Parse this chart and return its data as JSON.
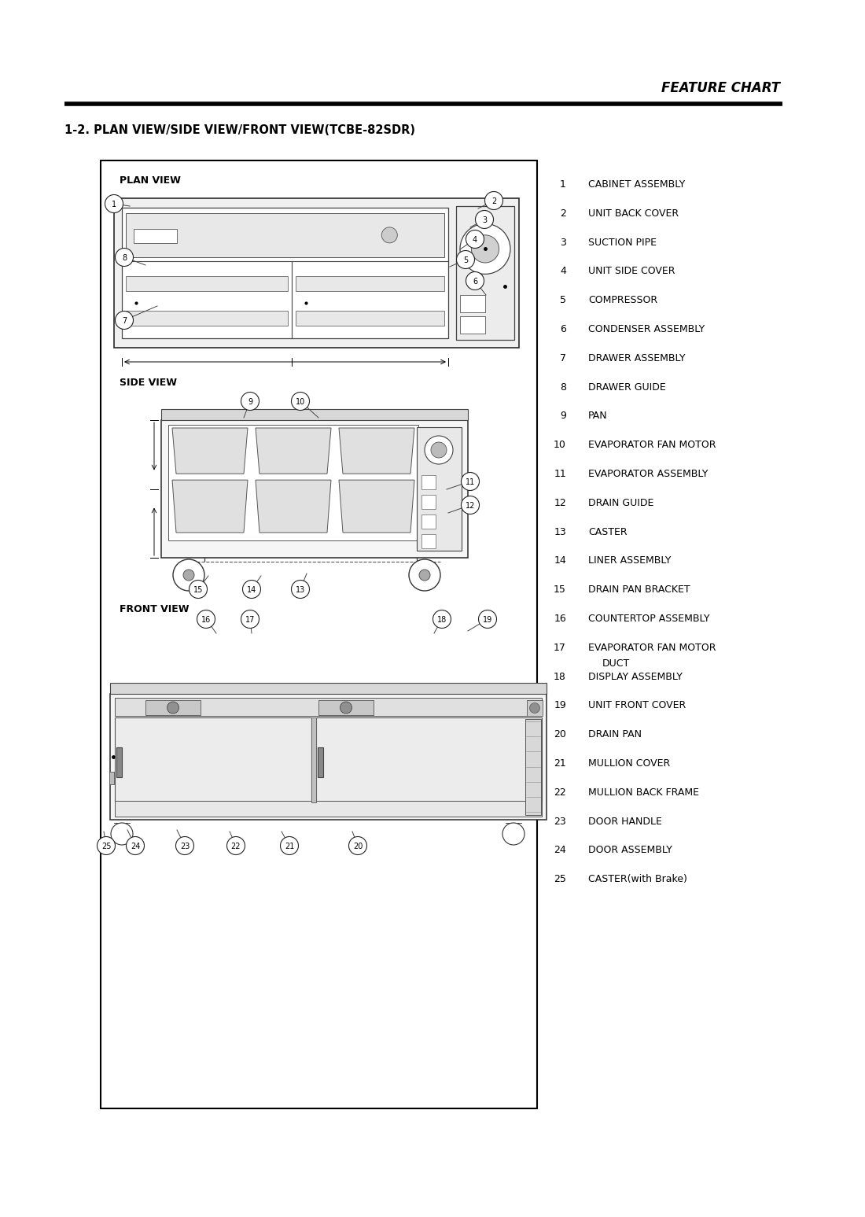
{
  "title_header": "FEATURE CHART",
  "section_title": "1-2. PLAN VIEW/SIDE VIEW/FRONT VIEW(TCBE-82SDR)",
  "bg_color": "#ffffff",
  "border_color": "#000000",
  "line_color": "#555555",
  "parts": [
    [
      1,
      "CABINET ASSEMBLY"
    ],
    [
      2,
      "UNIT BACK COVER"
    ],
    [
      3,
      "SUCTION PIPE"
    ],
    [
      4,
      "UNIT SIDE COVER"
    ],
    [
      5,
      "COMPRESSOR"
    ],
    [
      6,
      "CONDENSER ASSEMBLY"
    ],
    [
      7,
      "DRAWER ASSEMBLY"
    ],
    [
      8,
      "DRAWER GUIDE"
    ],
    [
      9,
      "PAN"
    ],
    [
      10,
      "EVAPORATOR FAN MOTOR"
    ],
    [
      11,
      "EVAPORATOR ASSEMBLY"
    ],
    [
      12,
      "DRAIN GUIDE"
    ],
    [
      13,
      "CASTER"
    ],
    [
      14,
      "LINER ASSEMBLY"
    ],
    [
      15,
      "DRAIN PAN BRACKET"
    ],
    [
      16,
      "COUNTERTOP ASSEMBLY"
    ],
    [
      17,
      "EVAPORATOR FAN MOTOR\nDUCT"
    ],
    [
      18,
      "DISPLAY ASSEMBLY"
    ],
    [
      19,
      "UNIT FRONT COVER"
    ],
    [
      20,
      "DRAIN PAN"
    ],
    [
      21,
      "MULLION COVER"
    ],
    [
      22,
      "MULLION BACK FRAME"
    ],
    [
      23,
      "DOOR HANDLE"
    ],
    [
      24,
      "DOOR ASSEMBLY"
    ],
    [
      25,
      "CASTER(with Brake)"
    ]
  ]
}
